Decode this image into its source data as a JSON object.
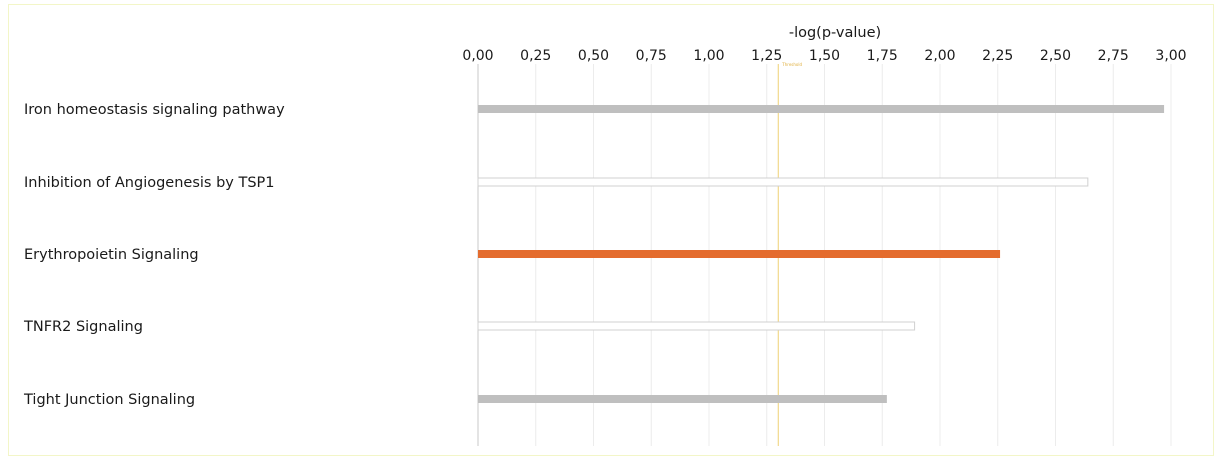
{
  "chart_data": {
    "type": "bar",
    "orientation": "horizontal",
    "title": "",
    "xlabel": "-log(p-value)",
    "ylabel": "",
    "xlim": [
      0,
      3.0
    ],
    "x_ticks": [
      "0,00",
      "0,25",
      "0,50",
      "0,75",
      "1,00",
      "1,25",
      "1,50",
      "1,75",
      "2,00",
      "2,25",
      "2,50",
      "2,75",
      "3,00"
    ],
    "x_axis_position": "top",
    "grid": true,
    "threshold": {
      "value": 1.3,
      "label": "Threshold",
      "color": "#f2d98a"
    },
    "categories": [
      "Iron homeostasis signaling pathway",
      "Inhibition of Angiogenesis by TSP1",
      "Erythropoietin Signaling",
      "TNFR2 Signaling",
      "Tight Junction Signaling"
    ],
    "values": [
      2.97,
      2.64,
      2.26,
      1.89,
      1.77
    ],
    "bar_styles": [
      "solid",
      "outline",
      "solid",
      "outline",
      "solid"
    ],
    "bar_colors": [
      "#bfbfbf",
      "#ffffff",
      "#e46c2e",
      "#ffffff",
      "#bfbfbf"
    ],
    "outline_color": "#d0d0d0"
  }
}
